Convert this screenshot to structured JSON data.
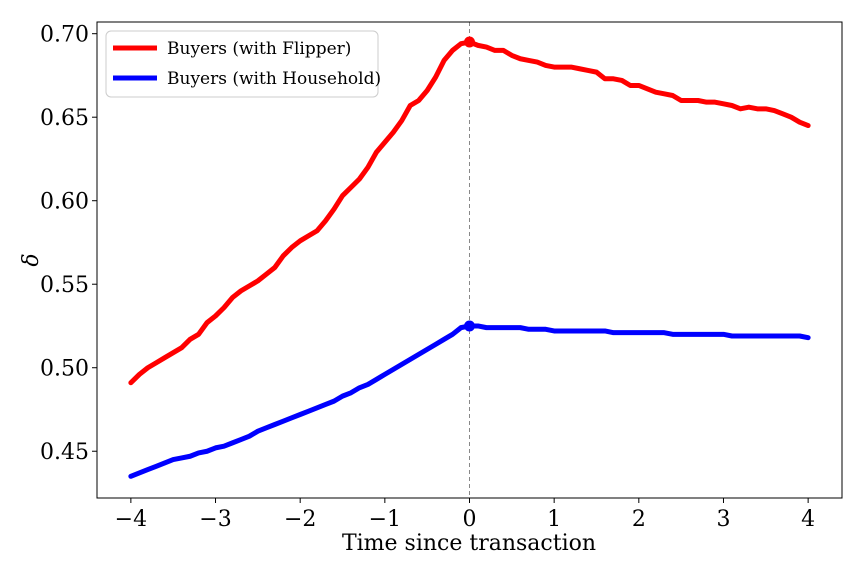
{
  "chart_data": {
    "type": "line",
    "xlabel": "Time since transaction",
    "ylabel": "δ",
    "xlim": [
      -4.4,
      4.4
    ],
    "ylim": [
      0.422,
      0.707
    ],
    "xticks": [
      -4,
      -3,
      -2,
      -1,
      0,
      1,
      2,
      3,
      4
    ],
    "xtick_labels": [
      "−4",
      "−3",
      "−2",
      "−1",
      "0",
      "1",
      "2",
      "3",
      "4"
    ],
    "yticks": [
      0.45,
      0.5,
      0.55,
      0.6,
      0.65,
      0.7
    ],
    "ytick_labels": [
      "0.45",
      "0.50",
      "0.55",
      "0.60",
      "0.65",
      "0.70"
    ],
    "vline": {
      "x": 0,
      "style": "dashed",
      "color": "#888888"
    },
    "legend": {
      "position": "top-left"
    },
    "series": [
      {
        "name": "Buyers (with Flipper)",
        "color": "#ff0000",
        "marker_at": [
          0,
          0.695
        ],
        "x": [
          -4,
          -3.9,
          -3.8,
          -3.7,
          -3.6,
          -3.5,
          -3.4,
          -3.3,
          -3.2,
          -3.1,
          -3.0,
          -2.9,
          -2.8,
          -2.7,
          -2.6,
          -2.5,
          -2.4,
          -2.3,
          -2.2,
          -2.1,
          -2.0,
          -1.9,
          -1.8,
          -1.7,
          -1.6,
          -1.5,
          -1.4,
          -1.3,
          -1.2,
          -1.1,
          -1.0,
          -0.9,
          -0.8,
          -0.7,
          -0.6,
          -0.5,
          -0.4,
          -0.3,
          -0.2,
          -0.1,
          0,
          0.1,
          0.2,
          0.3,
          0.4,
          0.5,
          0.6,
          0.7,
          0.8,
          0.9,
          1.0,
          1.1,
          1.2,
          1.3,
          1.4,
          1.5,
          1.6,
          1.7,
          1.8,
          1.9,
          2.0,
          2.1,
          2.2,
          2.3,
          2.4,
          2.5,
          2.6,
          2.7,
          2.8,
          2.9,
          3.0,
          3.1,
          3.2,
          3.3,
          3.4,
          3.5,
          3.6,
          3.7,
          3.8,
          3.9,
          4.0
        ],
        "y": [
          0.491,
          0.496,
          0.5,
          0.503,
          0.506,
          0.509,
          0.512,
          0.517,
          0.52,
          0.527,
          0.531,
          0.536,
          0.542,
          0.546,
          0.549,
          0.552,
          0.556,
          0.56,
          0.567,
          0.572,
          0.576,
          0.579,
          0.582,
          0.588,
          0.595,
          0.603,
          0.608,
          0.613,
          0.62,
          0.629,
          0.635,
          0.641,
          0.648,
          0.657,
          0.66,
          0.666,
          0.674,
          0.684,
          0.69,
          0.694,
          0.695,
          0.693,
          0.692,
          0.69,
          0.69,
          0.687,
          0.685,
          0.684,
          0.683,
          0.681,
          0.68,
          0.68,
          0.68,
          0.679,
          0.678,
          0.677,
          0.673,
          0.673,
          0.672,
          0.669,
          0.669,
          0.667,
          0.665,
          0.664,
          0.663,
          0.66,
          0.66,
          0.66,
          0.659,
          0.659,
          0.658,
          0.657,
          0.655,
          0.656,
          0.655,
          0.655,
          0.654,
          0.652,
          0.65,
          0.647,
          0.645
        ]
      },
      {
        "name": "Buyers (with Household)",
        "color": "#0000ff",
        "marker_at": [
          0,
          0.525
        ],
        "x": [
          -4,
          -3.9,
          -3.8,
          -3.7,
          -3.6,
          -3.5,
          -3.4,
          -3.3,
          -3.2,
          -3.1,
          -3.0,
          -2.9,
          -2.8,
          -2.7,
          -2.6,
          -2.5,
          -2.4,
          -2.3,
          -2.2,
          -2.1,
          -2.0,
          -1.9,
          -1.8,
          -1.7,
          -1.6,
          -1.5,
          -1.4,
          -1.3,
          -1.2,
          -1.1,
          -1.0,
          -0.9,
          -0.8,
          -0.7,
          -0.6,
          -0.5,
          -0.4,
          -0.3,
          -0.2,
          -0.1,
          0,
          0.1,
          0.2,
          0.3,
          0.4,
          0.5,
          0.6,
          0.7,
          0.8,
          0.9,
          1.0,
          1.1,
          1.2,
          1.3,
          1.4,
          1.5,
          1.6,
          1.7,
          1.8,
          1.9,
          2.0,
          2.1,
          2.2,
          2.3,
          2.4,
          2.5,
          2.6,
          2.7,
          2.8,
          2.9,
          3.0,
          3.1,
          3.2,
          3.3,
          3.4,
          3.5,
          3.6,
          3.7,
          3.8,
          3.9,
          4.0
        ],
        "y": [
          0.435,
          0.437,
          0.439,
          0.441,
          0.443,
          0.445,
          0.446,
          0.447,
          0.449,
          0.45,
          0.452,
          0.453,
          0.455,
          0.457,
          0.459,
          0.462,
          0.464,
          0.466,
          0.468,
          0.47,
          0.472,
          0.474,
          0.476,
          0.478,
          0.48,
          0.483,
          0.485,
          0.488,
          0.49,
          0.493,
          0.496,
          0.499,
          0.502,
          0.505,
          0.508,
          0.511,
          0.514,
          0.517,
          0.52,
          0.524,
          0.525,
          0.525,
          0.524,
          0.524,
          0.524,
          0.524,
          0.524,
          0.523,
          0.523,
          0.523,
          0.522,
          0.522,
          0.522,
          0.522,
          0.522,
          0.522,
          0.522,
          0.521,
          0.521,
          0.521,
          0.521,
          0.521,
          0.521,
          0.521,
          0.52,
          0.52,
          0.52,
          0.52,
          0.52,
          0.52,
          0.52,
          0.519,
          0.519,
          0.519,
          0.519,
          0.519,
          0.519,
          0.519,
          0.519,
          0.519,
          0.518
        ]
      }
    ]
  }
}
